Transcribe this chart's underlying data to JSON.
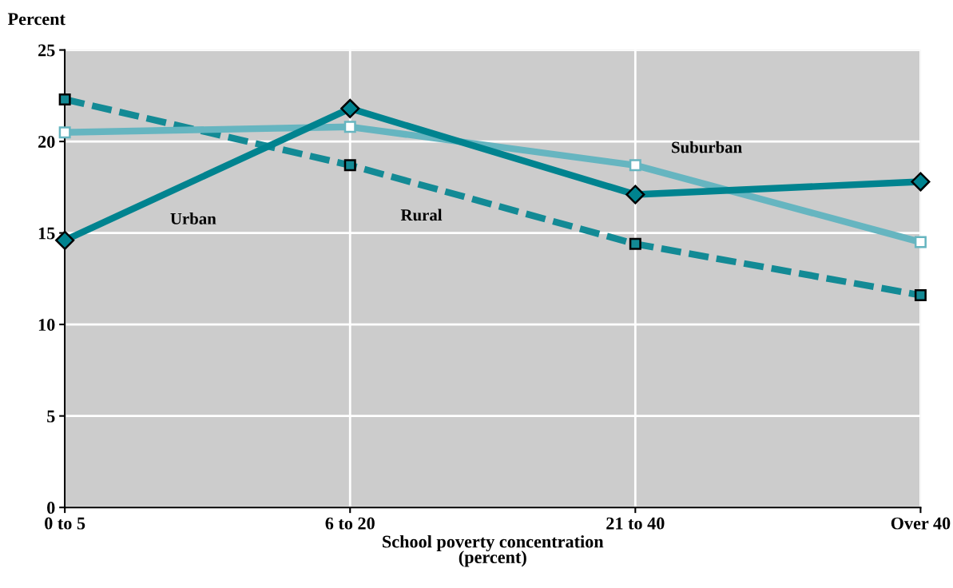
{
  "chart_data": {
    "type": "line",
    "categories": [
      "0 to 5",
      "6 to 20",
      "21 to 40",
      "Over 40"
    ],
    "ylabel": "Percent",
    "xlabel": "School poverty concentration\n(percent)",
    "ylim": [
      0,
      25
    ],
    "yticks": [
      0,
      5,
      10,
      15,
      20,
      25
    ],
    "grid": true,
    "legend": false,
    "series": [
      {
        "name": "Urban",
        "color": "#00838f",
        "marker": "diamond",
        "line_style": "solid",
        "values": [
          14.6,
          21.8,
          17.1,
          17.8
        ]
      },
      {
        "name": "Suburban",
        "color": "#66b5c0",
        "marker": "square",
        "line_style": "solid",
        "values": [
          20.5,
          20.8,
          18.7,
          14.5
        ]
      },
      {
        "name": "Rural",
        "color": "#138a95",
        "marker": "square",
        "line_style": "dashed",
        "values": [
          22.3,
          18.7,
          14.4,
          11.6
        ]
      }
    ]
  }
}
